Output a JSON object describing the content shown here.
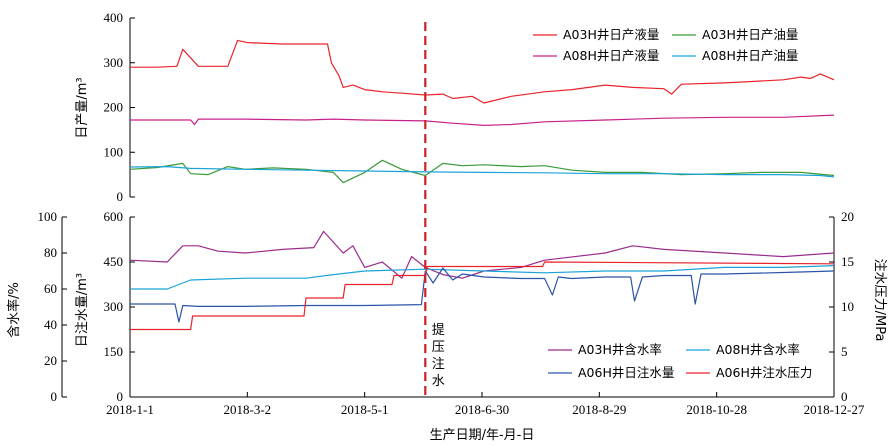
{
  "colors": {
    "a03_liquid": "#e8242a",
    "a03_oil": "#3a9a3a",
    "a08_liquid": "#c8208a",
    "a08_oil": "#1aa3d8",
    "a03_watercut": "#9b2b8c",
    "a08_watercut": "#1aa3d8",
    "a06_injection": "#2a55a8",
    "a06_pressure": "#e8242a",
    "divider": "#cc2222"
  },
  "x_axis": {
    "title": "生产日期/年-月-日",
    "ticks": [
      "2018-1-1",
      "2018-3-2",
      "2018-5-1",
      "2018-6-30",
      "2018-8-29",
      "2018-10-28",
      "2018-12-27"
    ]
  },
  "annotation": {
    "chars": [
      "提",
      "压",
      "注",
      "水"
    ]
  },
  "chart_data": [
    {
      "type": "line",
      "x_unit": "date",
      "ylabel": "日产量/m³",
      "ylim": [
        0,
        400
      ],
      "yticks": [
        0,
        100,
        200,
        300,
        400
      ],
      "divider_date": "2018-6-1",
      "series": [
        {
          "name": "A03H井日产液量",
          "color_key": "a03_liquid",
          "x": [
            "2018-1-1",
            "2018-1-15",
            "2018-1-25",
            "2018-1-28",
            "2018-2-5",
            "2018-2-20",
            "2018-2-25",
            "2018-3-2",
            "2018-3-20",
            "2018-4-1",
            "2018-4-12",
            "2018-4-14",
            "2018-4-18",
            "2018-4-20",
            "2018-4-25",
            "2018-5-1",
            "2018-5-10",
            "2018-5-20",
            "2018-6-1",
            "2018-6-10",
            "2018-6-15",
            "2018-6-25",
            "2018-7-1",
            "2018-7-15",
            "2018-8-1",
            "2018-8-15",
            "2018-9-1",
            "2018-9-15",
            "2018-10-1",
            "2018-10-5",
            "2018-10-10",
            "2018-11-1",
            "2018-11-15",
            "2018-12-1",
            "2018-12-10",
            "2018-12-15",
            "2018-12-20",
            "2018-12-27"
          ],
          "values": [
            290,
            290,
            292,
            330,
            292,
            292,
            350,
            345,
            342,
            342,
            342,
            300,
            270,
            245,
            250,
            240,
            235,
            232,
            228,
            230,
            220,
            225,
            210,
            225,
            235,
            240,
            250,
            245,
            242,
            230,
            252,
            255,
            258,
            262,
            268,
            265,
            275,
            262
          ]
        },
        {
          "name": "A03H井日产油量",
          "color_key": "a03_oil",
          "x": [
            "2018-1-1",
            "2018-1-15",
            "2018-1-28",
            "2018-2-1",
            "2018-2-10",
            "2018-2-20",
            "2018-3-1",
            "2018-3-15",
            "2018-4-1",
            "2018-4-15",
            "2018-4-20",
            "2018-5-1",
            "2018-5-10",
            "2018-5-20",
            "2018-6-1",
            "2018-6-10",
            "2018-6-20",
            "2018-7-1",
            "2018-7-20",
            "2018-8-1",
            "2018-8-15",
            "2018-9-1",
            "2018-9-20",
            "2018-10-10",
            "2018-11-1",
            "2018-11-20",
            "2018-12-10",
            "2018-12-27"
          ],
          "values": [
            62,
            66,
            75,
            52,
            50,
            68,
            62,
            65,
            62,
            55,
            32,
            55,
            82,
            62,
            48,
            75,
            70,
            72,
            68,
            70,
            60,
            55,
            55,
            50,
            52,
            55,
            55,
            48
          ]
        },
        {
          "name": "A08H井日产液量",
          "color_key": "a08_liquid",
          "x": [
            "2018-1-1",
            "2018-1-20",
            "2018-2-1",
            "2018-2-3",
            "2018-2-5",
            "2018-3-1",
            "2018-4-1",
            "2018-4-15",
            "2018-5-1",
            "2018-6-1",
            "2018-6-15",
            "2018-7-1",
            "2018-7-15",
            "2018-8-1",
            "2018-9-1",
            "2018-10-1",
            "2018-11-1",
            "2018-12-1",
            "2018-12-27"
          ],
          "values": [
            172,
            172,
            172,
            162,
            174,
            174,
            172,
            174,
            172,
            170,
            165,
            160,
            162,
            168,
            172,
            176,
            178,
            178,
            183
          ]
        },
        {
          "name": "A08H井日产油量",
          "color_key": "a08_oil",
          "x": [
            "2018-1-1",
            "2018-1-20",
            "2018-2-1",
            "2018-3-1",
            "2018-4-1",
            "2018-5-1",
            "2018-6-1",
            "2018-7-1",
            "2018-8-1",
            "2018-9-1",
            "2018-10-1",
            "2018-11-1",
            "2018-12-1",
            "2018-12-20",
            "2018-12-27"
          ],
          "values": [
            67,
            68,
            64,
            62,
            60,
            58,
            56,
            55,
            54,
            52,
            52,
            50,
            50,
            48,
            45
          ]
        }
      ]
    },
    {
      "type": "line",
      "x_unit": "date",
      "ylabel_left_outer": "含水率/%",
      "ylim_left_outer": [
        0,
        100
      ],
      "yticks_left_outer": [
        0,
        20,
        40,
        60,
        80,
        100
      ],
      "ylabel_left_inner": "日注水量/m³",
      "ylim_left_inner": [
        0,
        600
      ],
      "yticks_left_inner": [
        0,
        150,
        300,
        450,
        600
      ],
      "ylabel_right": "注水压力/MPa",
      "ylim_right": [
        0,
        20
      ],
      "yticks_right": [
        0,
        5,
        10,
        15,
        20
      ],
      "series": [
        {
          "name": "A03H井含水率",
          "axis": "left_outer",
          "color_key": "a03_watercut",
          "x": [
            "2018-1-1",
            "2018-1-20",
            "2018-1-28",
            "2018-2-5",
            "2018-2-15",
            "2018-3-1",
            "2018-3-20",
            "2018-4-5",
            "2018-4-10",
            "2018-4-20",
            "2018-4-25",
            "2018-5-1",
            "2018-5-10",
            "2018-5-20",
            "2018-5-25",
            "2018-6-1",
            "2018-6-10",
            "2018-6-20",
            "2018-7-1",
            "2018-7-20",
            "2018-8-1",
            "2018-9-1",
            "2018-9-15",
            "2018-10-1",
            "2018-11-1",
            "2018-12-1",
            "2018-12-27"
          ],
          "values": [
            76,
            75,
            84,
            84,
            81,
            80,
            82,
            83,
            92,
            80,
            84,
            72,
            75,
            66,
            78,
            72,
            68,
            66,
            70,
            72,
            76,
            80,
            84,
            82,
            80,
            78,
            80
          ]
        },
        {
          "name": "A08H井含水率",
          "axis": "left_outer",
          "color_key": "a08_watercut",
          "x": [
            "2018-1-1",
            "2018-1-20",
            "2018-2-1",
            "2018-3-1",
            "2018-4-1",
            "2018-4-15",
            "2018-5-1",
            "2018-6-1",
            "2018-7-1",
            "2018-8-1",
            "2018-9-1",
            "2018-10-1",
            "2018-11-1",
            "2018-12-1",
            "2018-12-27"
          ],
          "values": [
            60,
            60,
            65,
            66,
            66,
            68,
            70,
            71,
            70,
            69,
            70,
            70,
            72,
            72,
            73
          ]
        },
        {
          "name": "A06H井日注水量",
          "axis": "left_inner",
          "color_key": "a06_injection",
          "x": [
            "2018-1-1",
            "2018-1-24",
            "2018-1-26",
            "2018-1-28",
            "2018-2-5",
            "2018-3-1",
            "2018-4-1",
            "2018-5-1",
            "2018-5-30",
            "2018-6-1",
            "2018-6-5",
            "2018-6-10",
            "2018-6-15",
            "2018-6-20",
            "2018-7-1",
            "2018-7-20",
            "2018-8-1",
            "2018-8-5",
            "2018-8-8",
            "2018-8-15",
            "2018-9-1",
            "2018-9-14",
            "2018-9-16",
            "2018-9-20",
            "2018-10-1",
            "2018-10-15",
            "2018-10-17",
            "2018-10-20",
            "2018-11-1",
            "2018-12-1",
            "2018-12-27"
          ],
          "values": [
            310,
            310,
            250,
            305,
            302,
            302,
            305,
            305,
            308,
            420,
            380,
            430,
            390,
            410,
            400,
            395,
            395,
            340,
            400,
            395,
            400,
            400,
            320,
            400,
            405,
            405,
            310,
            410,
            410,
            415,
            420
          ]
        },
        {
          "name": "A06H井注水压力",
          "axis": "right",
          "color_key": "a06_pressure",
          "x": [
            "2018-1-1",
            "2018-2-1",
            "2018-2-2",
            "2018-3-31",
            "2018-4-1",
            "2018-4-20",
            "2018-4-21",
            "2018-5-15",
            "2018-5-16",
            "2018-6-1",
            "2018-6-2",
            "2018-7-31",
            "2018-8-1",
            "2018-12-27"
          ],
          "values": [
            7.5,
            7.5,
            9,
            9,
            11,
            11,
            12.5,
            12.5,
            13.5,
            13.5,
            14.5,
            14.5,
            15,
            14.8
          ]
        }
      ]
    }
  ],
  "legends": {
    "top": [
      {
        "label": "A03H井日产液量",
        "color_key": "a03_liquid"
      },
      {
        "label": "A03H井日产油量",
        "color_key": "a03_oil"
      },
      {
        "label": "A08H井日产液量",
        "color_key": "a08_liquid"
      },
      {
        "label": "A08H井日产油量",
        "color_key": "a08_oil"
      }
    ],
    "bottom": [
      {
        "label": "A03H井含水率",
        "color_key": "a03_watercut"
      },
      {
        "label": "A08H井含水率",
        "color_key": "a08_watercut"
      },
      {
        "label": "A06H井日注水量",
        "color_key": "a06_injection"
      },
      {
        "label": "A06H井注水压力",
        "color_key": "a06_pressure"
      }
    ]
  }
}
